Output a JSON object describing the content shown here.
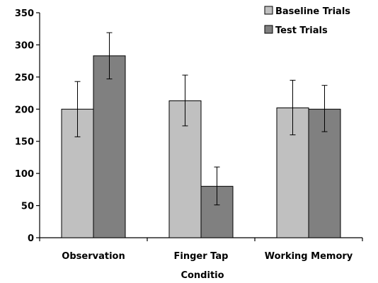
{
  "chart_data": {
    "type": "bar",
    "categories": [
      "Observation",
      "Finger Tap",
      "Working Memory"
    ],
    "xlabel": "Conditio",
    "ylabel": "",
    "ylim": [
      0,
      350
    ],
    "yticks": [
      0,
      50,
      100,
      150,
      200,
      250,
      300,
      350
    ],
    "grid": false,
    "legend_position": "top-right",
    "series": [
      {
        "name": "Baseline Trials",
        "color": "#c0c0c0",
        "values": [
          200,
          213,
          202
        ],
        "error": [
          [
            157,
            243
          ],
          [
            174,
            253
          ],
          [
            160,
            245
          ]
        ]
      },
      {
        "name": "Test Trials",
        "color": "#808080",
        "values": [
          283,
          80,
          200
        ],
        "error": [
          [
            247,
            319
          ],
          [
            51,
            110
          ],
          [
            165,
            237
          ]
        ]
      }
    ]
  }
}
